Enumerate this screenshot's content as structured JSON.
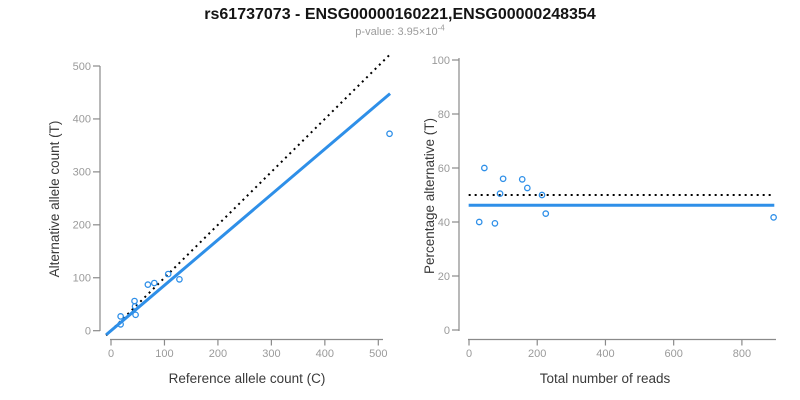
{
  "header": {
    "title": "rs61737073 - ENSG00000160221,ENSG00000248354",
    "p_value_text": "p-value: 3.95×10",
    "p_value_exponent": "-4"
  },
  "colors": {
    "accent_blue": "#2e8fe8",
    "line_black": "#000000",
    "axis_line_gray": "#8a8a8a",
    "tick_label_gray": "#9a9a9a",
    "axis_title_color": "#3a3a3a",
    "title_color": "#141414",
    "background": "#ffffff"
  },
  "chart_data": [
    {
      "type": "scatter",
      "panel": "left",
      "xlabel": "Reference allele count (C)",
      "ylabel": "Alternative allele count (T)",
      "xlim": [
        0,
        520
      ],
      "ylim": [
        0,
        520
      ],
      "xticks": [
        0,
        100,
        200,
        300,
        400,
        500
      ],
      "yticks": [
        0,
        100,
        200,
        300,
        400,
        500
      ],
      "grid": false,
      "points": [
        [
          18,
          27
        ],
        [
          18,
          12
        ],
        [
          44,
          56
        ],
        [
          45,
          46
        ],
        [
          46,
          30
        ],
        [
          69,
          87
        ],
        [
          81,
          90
        ],
        [
          107,
          107
        ],
        [
          128,
          97
        ],
        [
          521,
          372
        ]
      ],
      "lines": [
        {
          "name": "identity-line",
          "style": "dotted",
          "color": "#000000",
          "slope": 1,
          "intercept": 0
        },
        {
          "name": "fit-line",
          "style": "solid",
          "color": "#2e8fe8",
          "slope": 0.858,
          "intercept": 0
        }
      ]
    },
    {
      "type": "scatter",
      "panel": "right",
      "xlabel": "Total number of reads",
      "ylabel": "Percentage alternative (T)",
      "xlim": [
        0,
        900
      ],
      "ylim": [
        0,
        100
      ],
      "xticks": [
        0,
        200,
        400,
        600,
        800
      ],
      "yticks": [
        0,
        20,
        40,
        60,
        80,
        100
      ],
      "grid": false,
      "points": [
        [
          45,
          60
        ],
        [
          30,
          40
        ],
        [
          100,
          56
        ],
        [
          91,
          50.5
        ],
        [
          76,
          39.5
        ],
        [
          156,
          55.8
        ],
        [
          171,
          52.6
        ],
        [
          214,
          50
        ],
        [
          225,
          43.1
        ],
        [
          893,
          41.7
        ]
      ],
      "lines": [
        {
          "name": "expected-50pct-line",
          "style": "dotted",
          "color": "#000000",
          "slope": 0,
          "intercept": 50
        },
        {
          "name": "mean-pct-line",
          "style": "solid",
          "color": "#2e8fe8",
          "slope": 0,
          "intercept": 46.2
        }
      ]
    }
  ]
}
